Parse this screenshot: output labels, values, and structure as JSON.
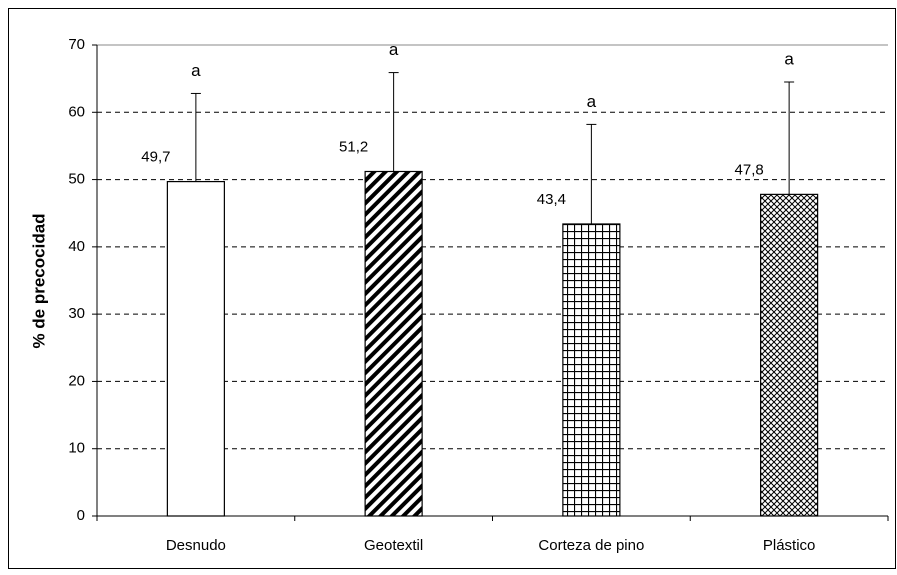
{
  "chart_data": {
    "type": "bar",
    "y_label": "% de precocidad",
    "categories": [
      "Desnudo",
      "Geotextil",
      "Corteza de pino",
      "Plástico"
    ],
    "values": [
      49.7,
      51.2,
      43.4,
      47.8
    ],
    "value_labels": [
      "49,7",
      "51,2",
      "43,4",
      "47,8"
    ],
    "errors": [
      13.1,
      14.7,
      14.8,
      16.7
    ],
    "annotations": [
      "a",
      "a",
      "a",
      "a"
    ],
    "patterns": [
      "none",
      "diagonal",
      "grid",
      "crosshatch"
    ],
    "color": "#000000",
    "ylim": [
      0,
      70
    ],
    "yticks": [
      0,
      10,
      20,
      30,
      40,
      50,
      60,
      70
    ],
    "grid": true
  }
}
